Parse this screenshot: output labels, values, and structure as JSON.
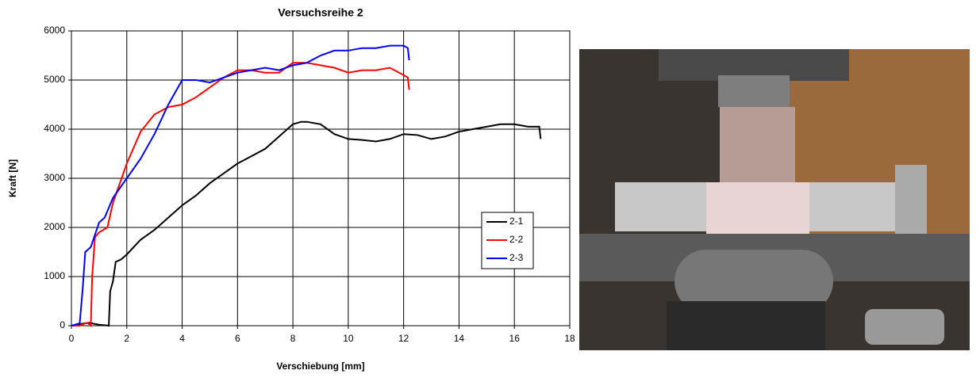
{
  "chart_data": {
    "type": "line",
    "title": "Versuchsreihe 2",
    "x_label": "Verschiebung [mm]",
    "y_label": "Kraft [N]",
    "xlim": [
      0,
      18
    ],
    "xticks": [
      0,
      2,
      4,
      6,
      8,
      10,
      12,
      14,
      16,
      18
    ],
    "ylim": [
      0,
      6000
    ],
    "yticks": [
      0,
      1000,
      2000,
      3000,
      4000,
      5000,
      6000
    ],
    "grid": true,
    "legend": "right",
    "series": [
      {
        "name": "2-1",
        "color": "#000000",
        "x": [
          0,
          0.3,
          0.5,
          0.7,
          0.8,
          1.0,
          1.2,
          1.35,
          1.4,
          1.5,
          1.6,
          1.8,
          2.0,
          2.5,
          3,
          3.5,
          4,
          4.5,
          5,
          5.5,
          6,
          6.5,
          7,
          7.5,
          8,
          8.3,
          8.5,
          9,
          9.5,
          10,
          10.5,
          11,
          11.5,
          12,
          12.5,
          13,
          13.5,
          14,
          14.5,
          15,
          15.5,
          16,
          16.5,
          16.9,
          16.95
        ],
        "values": [
          0,
          30,
          50,
          60,
          40,
          20,
          10,
          0,
          700,
          900,
          1300,
          1350,
          1450,
          1750,
          1950,
          2200,
          2450,
          2650,
          2900,
          3100,
          3300,
          3450,
          3600,
          3850,
          4100,
          4150,
          4150,
          4100,
          3900,
          3800,
          3780,
          3750,
          3800,
          3900,
          3880,
          3800,
          3850,
          3950,
          4000,
          4050,
          4100,
          4100,
          4050,
          4050,
          3800
        ]
      },
      {
        "name": "2-2",
        "color": "#ff0000",
        "x": [
          0,
          0.3,
          0.5,
          0.6,
          0.7,
          0.75,
          0.85,
          1.0,
          1.3,
          1.5,
          2.0,
          2.5,
          3.0,
          3.5,
          4.0,
          4.5,
          5,
          5.5,
          6,
          6.5,
          7,
          7.5,
          8,
          8.5,
          9,
          9.5,
          10,
          10.5,
          11,
          11.5,
          12,
          12.15,
          12.2
        ],
        "values": [
          0,
          0,
          50,
          50,
          0,
          1000,
          1800,
          1900,
          2000,
          2500,
          3300,
          3950,
          4300,
          4450,
          4500,
          4650,
          4850,
          5050,
          5200,
          5200,
          5150,
          5150,
          5350,
          5350,
          5300,
          5250,
          5150,
          5200,
          5200,
          5250,
          5100,
          5050,
          4800
        ]
      },
      {
        "name": "2-3",
        "color": "#0000ff",
        "x": [
          0,
          0.3,
          0.4,
          0.5,
          0.6,
          0.7,
          1.0,
          1.2,
          1.5,
          2.0,
          2.5,
          3.0,
          3.5,
          4.0,
          4.5,
          5,
          5.5,
          6,
          6.5,
          7,
          7.5,
          8,
          8.5,
          9,
          9.5,
          10,
          10.5,
          11,
          11.5,
          12,
          12.15,
          12.2
        ],
        "values": [
          0,
          50,
          700,
          1500,
          1550,
          1600,
          2100,
          2200,
          2600,
          3000,
          3400,
          3900,
          4500,
          5000,
          5000,
          4950,
          5050,
          5150,
          5200,
          5250,
          5200,
          5300,
          5350,
          5500,
          5600,
          5600,
          5650,
          5650,
          5700,
          5700,
          5650,
          5400
        ]
      }
    ]
  }
}
